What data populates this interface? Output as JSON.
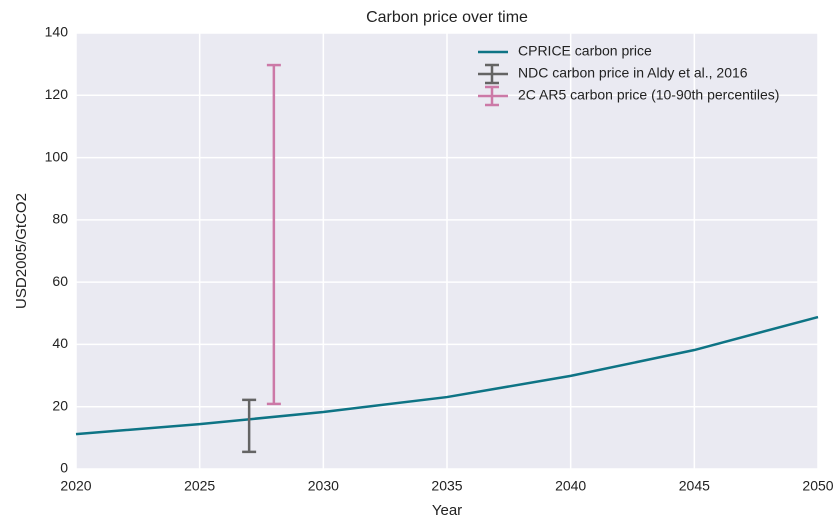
{
  "chart_data": {
    "type": "line",
    "title": "Carbon price over time",
    "xlabel": "Year",
    "ylabel": "USD2005/GtCO2",
    "x": [
      2020,
      2025,
      2030,
      2035,
      2040,
      2045,
      2050
    ],
    "series": [
      {
        "name": "CPRICE carbon price",
        "color": "#0e7485",
        "values": [
          11.2,
          14.4,
          18.3,
          23.1,
          29.9,
          38.2,
          48.8
        ]
      }
    ],
    "error_bars": [
      {
        "name": "NDC carbon price in Aldy et al., 2016",
        "color": "#646464",
        "x": 2027,
        "low": 5.5,
        "high": 22.2
      },
      {
        "name": "2C AR5 carbon price (10-90th percentiles)",
        "color": "#cc79a7",
        "x": 2028,
        "low": 20.9,
        "high": 129.7
      }
    ],
    "xlim": [
      2020,
      2050
    ],
    "xticks": [
      2020,
      2025,
      2030,
      2035,
      2040,
      2045,
      2050
    ],
    "ylim": [
      0,
      140
    ],
    "yticks": [
      0,
      20,
      40,
      60,
      80,
      100,
      120,
      140
    ],
    "grid": true,
    "legend": "upper right"
  }
}
